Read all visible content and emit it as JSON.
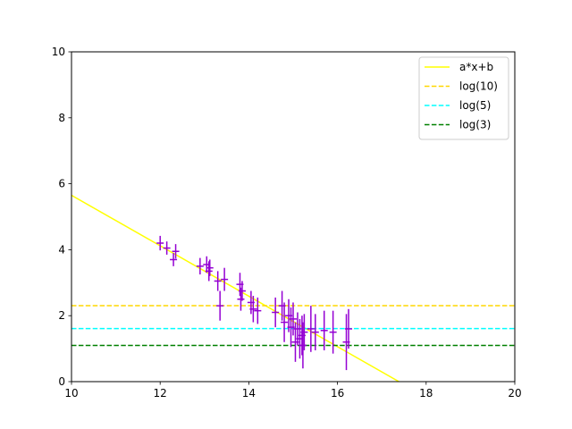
{
  "chart_data": {
    "type": "scatter",
    "title": "",
    "xlabel": "",
    "ylabel": "",
    "xlim": [
      10,
      20
    ],
    "ylim": [
      0,
      10
    ],
    "xticks": [
      "10",
      "12",
      "14",
      "16",
      "18",
      "20"
    ],
    "yticks": [
      "0",
      "2",
      "4",
      "6",
      "8",
      "10"
    ],
    "grid": false,
    "legend_position": "top-right",
    "fit_line": {
      "name": "a*x+b",
      "color": "#ffff00",
      "slope": -0.765,
      "intercept": 13.3
    },
    "hlines": [
      {
        "name": "log(10)",
        "y": 2.303,
        "color": "#ffd700",
        "style": "dashed"
      },
      {
        "name": "log(5)",
        "y": 1.609,
        "color": "#00ffff",
        "style": "dashed"
      },
      {
        "name": "log(3)",
        "y": 1.099,
        "color": "#008000",
        "style": "dashed"
      }
    ],
    "points_color": "#9400d3",
    "points": [
      {
        "x": 12.0,
        "y": 4.2,
        "err": 0.22
      },
      {
        "x": 12.15,
        "y": 4.05,
        "err": 0.2
      },
      {
        "x": 12.3,
        "y": 3.7,
        "err": 0.2
      },
      {
        "x": 12.35,
        "y": 3.95,
        "err": 0.22
      },
      {
        "x": 12.9,
        "y": 3.5,
        "err": 0.25
      },
      {
        "x": 13.05,
        "y": 3.55,
        "err": 0.25
      },
      {
        "x": 13.1,
        "y": 3.35,
        "err": 0.3
      },
      {
        "x": 13.12,
        "y": 3.45,
        "err": 0.25
      },
      {
        "x": 13.3,
        "y": 3.05,
        "err": 0.3
      },
      {
        "x": 13.35,
        "y": 2.3,
        "err": 0.45
      },
      {
        "x": 13.45,
        "y": 3.1,
        "err": 0.35
      },
      {
        "x": 13.8,
        "y": 2.95,
        "err": 0.35
      },
      {
        "x": 13.82,
        "y": 2.5,
        "err": 0.35
      },
      {
        "x": 13.85,
        "y": 2.75,
        "err": 0.3
      },
      {
        "x": 14.05,
        "y": 2.4,
        "err": 0.35
      },
      {
        "x": 14.1,
        "y": 2.2,
        "err": 0.4
      },
      {
        "x": 14.2,
        "y": 2.15,
        "err": 0.4
      },
      {
        "x": 14.6,
        "y": 2.1,
        "err": 0.45
      },
      {
        "x": 14.75,
        "y": 2.3,
        "err": 0.45
      },
      {
        "x": 14.8,
        "y": 1.8,
        "err": 0.6
      },
      {
        "x": 14.9,
        "y": 2.0,
        "err": 0.5
      },
      {
        "x": 14.95,
        "y": 1.65,
        "err": 0.6
      },
      {
        "x": 15.0,
        "y": 1.9,
        "err": 0.5
      },
      {
        "x": 15.05,
        "y": 1.2,
        "err": 0.6
      },
      {
        "x": 15.1,
        "y": 1.6,
        "err": 0.5
      },
      {
        "x": 15.15,
        "y": 1.3,
        "err": 0.6
      },
      {
        "x": 15.2,
        "y": 1.4,
        "err": 0.6
      },
      {
        "x": 15.22,
        "y": 1.1,
        "err": 0.7
      },
      {
        "x": 15.25,
        "y": 1.5,
        "err": 0.55
      },
      {
        "x": 15.4,
        "y": 1.6,
        "err": 0.7
      },
      {
        "x": 15.5,
        "y": 1.5,
        "err": 0.55
      },
      {
        "x": 15.7,
        "y": 1.55,
        "err": 0.6
      },
      {
        "x": 15.9,
        "y": 1.5,
        "err": 0.65
      },
      {
        "x": 16.2,
        "y": 1.2,
        "err": 0.85
      },
      {
        "x": 16.25,
        "y": 1.6,
        "err": 0.6
      }
    ]
  }
}
